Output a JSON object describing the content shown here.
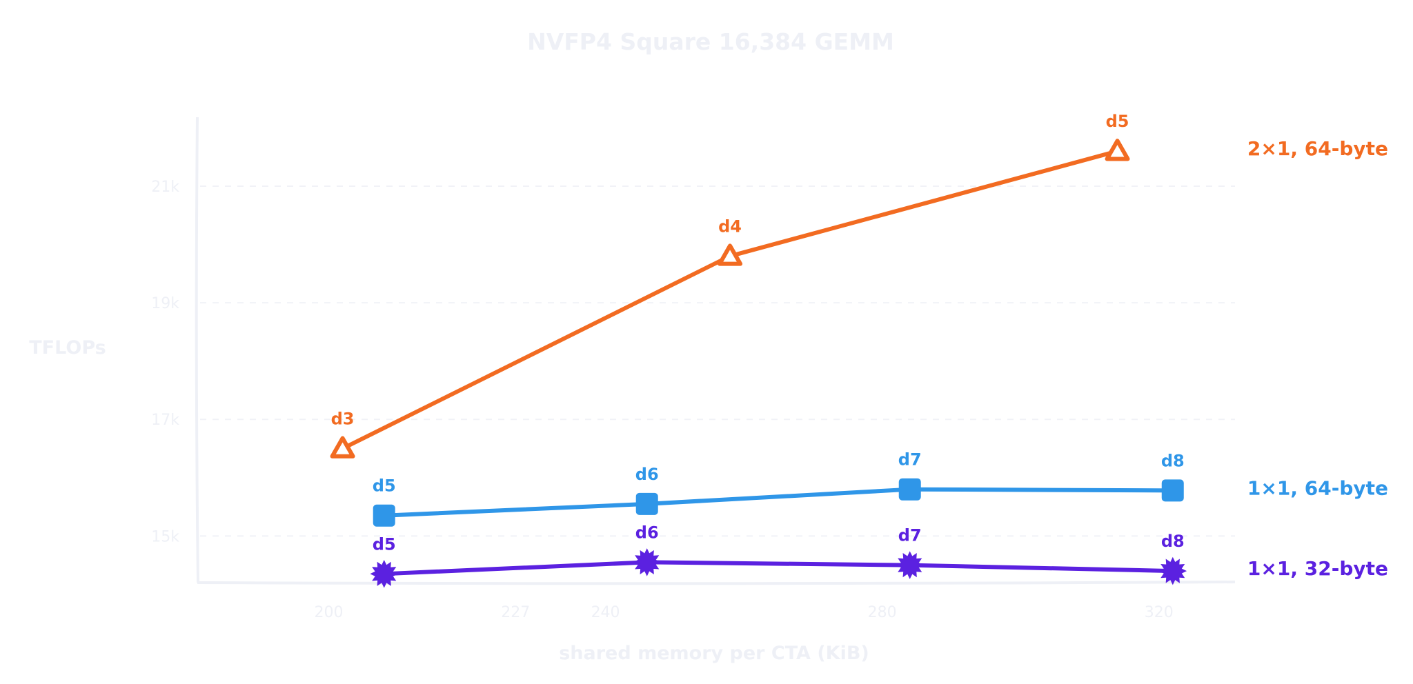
{
  "chart_data": {
    "type": "line",
    "title": "NVFP4 Square 16,384 GEMM",
    "xlabel": "shared memory per CTA (KiB)",
    "ylabel": "TFLOPs",
    "xlim": [
      181,
      331
    ],
    "ylim": [
      14200,
      22300
    ],
    "x_ticks": [
      200,
      227,
      240,
      280,
      320
    ],
    "y_ticks": [
      {
        "value": 15000,
        "label": "15k"
      },
      {
        "value": 17000,
        "label": "17k"
      },
      {
        "value": 19000,
        "label": "19k"
      },
      {
        "value": 21000,
        "label": "21k"
      }
    ],
    "grid": true,
    "legend_placement": "right, inline at line ends",
    "series": [
      {
        "name": "2×1, 64-byte",
        "color": "#f26b21",
        "marker": "triangle-open",
        "points": [
          {
            "x": 202,
            "y": 16500,
            "label": "d3"
          },
          {
            "x": 258,
            "y": 19800,
            "label": "d4"
          },
          {
            "x": 314,
            "y": 21600,
            "label": "d5"
          }
        ]
      },
      {
        "name": "1×1, 64-byte",
        "color": "#2f96e8",
        "marker": "square",
        "points": [
          {
            "x": 208,
            "y": 15350,
            "label": "d5"
          },
          {
            "x": 246,
            "y": 15550,
            "label": "d6"
          },
          {
            "x": 284,
            "y": 15800,
            "label": "d7"
          },
          {
            "x": 322,
            "y": 15780,
            "label": "d8"
          }
        ]
      },
      {
        "name": "1×1, 32-byte",
        "color": "#5b21e0",
        "marker": "spiky-circle",
        "points": [
          {
            "x": 208,
            "y": 14350,
            "label": "d5"
          },
          {
            "x": 246,
            "y": 14550,
            "label": "d6"
          },
          {
            "x": 284,
            "y": 14500,
            "label": "d7"
          },
          {
            "x": 322,
            "y": 14400,
            "label": "d8"
          }
        ]
      }
    ]
  }
}
